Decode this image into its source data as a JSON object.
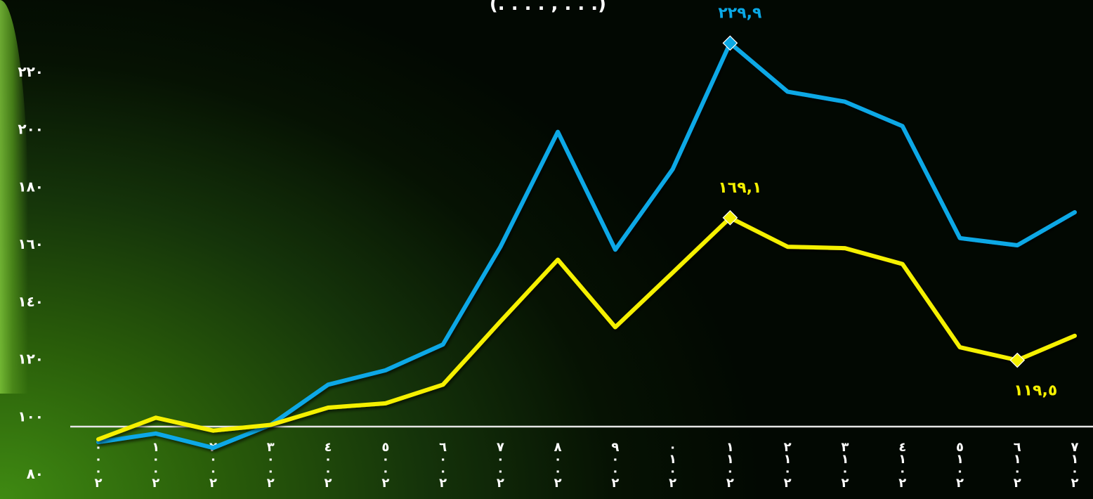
{
  "chart_data": {
    "type": "line",
    "title": "(. . . . , . . .)",
    "ylim": [
      80,
      240
    ],
    "yticks": [
      {
        "v": 80,
        "label": "٨٠"
      },
      {
        "v": 100,
        "label": "١٠٠"
      },
      {
        "v": 120,
        "label": "١٢٠"
      },
      {
        "v": 140,
        "label": "١٤٠"
      },
      {
        "v": 160,
        "label": "١٦٠"
      },
      {
        "v": 180,
        "label": "١٨٠"
      },
      {
        "v": 200,
        "label": "٢٠٠"
      },
      {
        "v": 220,
        "label": "٢٢٠"
      }
    ],
    "categories": [
      "٢٠٠٠",
      "٢٠٠١",
      "٢٠٠٢",
      "٢٠٠٣",
      "٢٠٠٤",
      "٢٠٠٥",
      "٢٠٠٦",
      "٢٠٠٧",
      "٢٠٠٨",
      "٢٠٠٩",
      "٢٠١٠",
      "٢٠١١",
      "٢٠١٢",
      "٢٠١٣",
      "٢٠١٤",
      "٢٠١٥",
      "٢٠١٦",
      "٢٠١٧"
    ],
    "grid": false,
    "legend": "none",
    "series": [
      {
        "color": "#0aa8e6",
        "values": [
          91,
          94,
          89,
          97,
          111,
          116,
          125,
          159,
          199,
          158,
          186,
          229.9,
          213,
          209.5,
          201,
          162,
          159.5,
          171
        ]
      },
      {
        "color": "#f5f000",
        "values": [
          92,
          99.5,
          95,
          97,
          103,
          104.5,
          111,
          133,
          154.5,
          131,
          150,
          169.1,
          159,
          158.5,
          153,
          124,
          119.5,
          128
        ]
      }
    ],
    "annotations": [
      {
        "series": 0,
        "index": 11,
        "text": "٢٢٩,٩",
        "pos": "above"
      },
      {
        "series": 1,
        "index": 11,
        "text": "١٦٩,١",
        "pos": "above"
      },
      {
        "series": 1,
        "index": 16,
        "text": "١١٩,٥",
        "pos": "below"
      }
    ]
  }
}
